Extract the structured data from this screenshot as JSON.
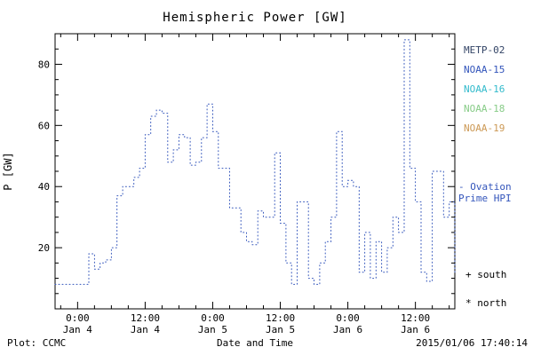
{
  "title": "Hemispheric Power [GW]",
  "legend": {
    "satellites": [
      {
        "label": "METP-02",
        "color": "#334466"
      },
      {
        "label": "NOAA-15",
        "color": "#3355bb"
      },
      {
        "label": "NOAA-16",
        "color": "#33bbcc"
      },
      {
        "label": "NOAA-18",
        "color": "#88cc88"
      },
      {
        "label": "NOAA-19",
        "color": "#cc9955"
      }
    ],
    "note_lines": [
      "- Ovation",
      "Prime HPI"
    ],
    "note_color": "#3355bb",
    "hemisphere_markers": [
      {
        "symbol": "+",
        "label": "south"
      },
      {
        "symbol": "*",
        "label": "north"
      }
    ]
  },
  "footer": {
    "plot_label": "Plot: CCMC",
    "timestamp": "2015/01/06 17:40:14"
  },
  "chart_data": {
    "type": "line",
    "subtype": "dotted-step",
    "title": "Hemispheric Power [GW]",
    "xlabel": "Date and Time",
    "ylabel": "P [GW]",
    "ylim": [
      0,
      90
    ],
    "yticks": [
      20,
      40,
      60,
      80
    ],
    "y_minor_step": 5,
    "x_unit": "hours",
    "x_range_hours": [
      0,
      71
    ],
    "x_minor_step": 3,
    "x_major_ticks": [
      {
        "t": 4,
        "time": "0:00",
        "date": "Jan 4"
      },
      {
        "t": 16,
        "time": "12:00",
        "date": "Jan 4"
      },
      {
        "t": 28,
        "time": "0:00",
        "date": "Jan 5"
      },
      {
        "t": 40,
        "time": "12:00",
        "date": "Jan 5"
      },
      {
        "t": 52,
        "time": "0:00",
        "date": "Jan 6"
      },
      {
        "t": 64,
        "time": "12:00",
        "date": "Jan 6"
      }
    ],
    "line_color": "#3355bb",
    "legend_position": "right",
    "grid": false,
    "series": [
      {
        "name": "Ovation Prime HPI",
        "x_step_hours": 1,
        "values": [
          8,
          8,
          8,
          8,
          8,
          8,
          18,
          13,
          15,
          16,
          20,
          37,
          40,
          40,
          43,
          46,
          57,
          63,
          65,
          64,
          48,
          52,
          57,
          56,
          47,
          48,
          56,
          67,
          58,
          46,
          46,
          33,
          33,
          25,
          22,
          21,
          32,
          30,
          30,
          51,
          28,
          15,
          8,
          35,
          35,
          10,
          8,
          15,
          22,
          30,
          58,
          40,
          42,
          40,
          12,
          25,
          10,
          22,
          12,
          20,
          30,
          25,
          88,
          46,
          35,
          12,
          9,
          45,
          45,
          30,
          35,
          12
        ]
      }
    ]
  }
}
